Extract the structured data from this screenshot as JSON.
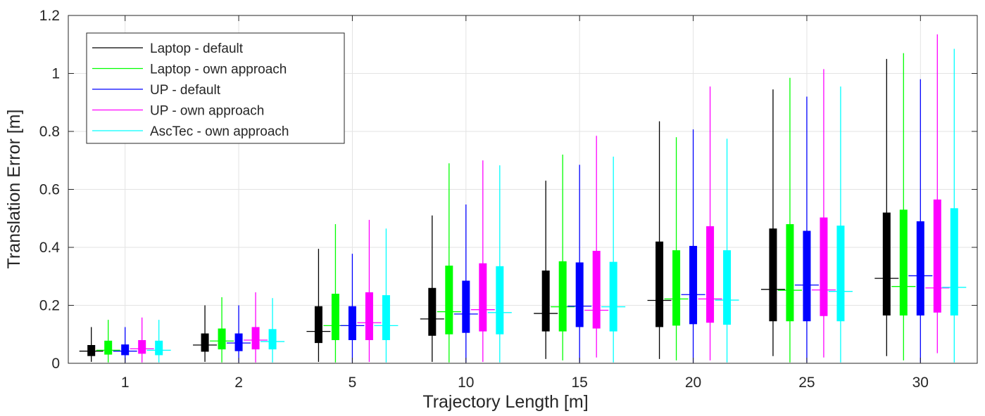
{
  "chart_data": {
    "type": "box",
    "xlabel": "Trajectory Length [m]",
    "ylabel": "Translation Error [m]",
    "ylim": [
      0,
      1.2
    ],
    "yticks": [
      0,
      0.2,
      0.4,
      0.6,
      0.8,
      1,
      1.2
    ],
    "ytick_labels": [
      "0",
      "0.2",
      "0.4",
      "0.6",
      "0.8",
      "1",
      "1.2"
    ],
    "categories": [
      "1",
      "2",
      "5",
      "10",
      "15",
      "20",
      "25",
      "30"
    ],
    "grid": true,
    "legend_position": "top-left",
    "series": [
      {
        "name": "Laptop - default",
        "color": "#000000",
        "min": [
          0.005,
          0.005,
          0.005,
          0.005,
          0.015,
          0.015,
          0.025,
          0.025
        ],
        "q1": [
          0.025,
          0.04,
          0.07,
          0.095,
          0.11,
          0.125,
          0.145,
          0.165
        ],
        "median": [
          0.042,
          0.063,
          0.11,
          0.153,
          0.172,
          0.217,
          0.255,
          0.293
        ],
        "q3": [
          0.063,
          0.103,
          0.197,
          0.26,
          0.32,
          0.42,
          0.465,
          0.52
        ],
        "max": [
          0.125,
          0.2,
          0.395,
          0.51,
          0.63,
          0.835,
          0.945,
          1.05
        ]
      },
      {
        "name": "Laptop - own approach",
        "color": "#00ff00",
        "min": [
          0.003,
          0.003,
          0.003,
          0.003,
          0.01,
          0.01,
          0.003,
          0.01
        ],
        "q1": [
          0.03,
          0.048,
          0.08,
          0.1,
          0.11,
          0.13,
          0.145,
          0.165
        ],
        "median": [
          0.045,
          0.077,
          0.13,
          0.178,
          0.195,
          0.222,
          0.252,
          0.265
        ],
        "q3": [
          0.078,
          0.12,
          0.24,
          0.337,
          0.352,
          0.39,
          0.48,
          0.53
        ],
        "max": [
          0.15,
          0.228,
          0.48,
          0.69,
          0.72,
          0.78,
          0.985,
          1.07
        ]
      },
      {
        "name": "UP - default",
        "color": "#0000ff",
        "min": [
          0.003,
          0.003,
          0.003,
          0.003,
          0.003,
          0.003,
          0.003,
          0.003
        ],
        "q1": [
          0.028,
          0.042,
          0.08,
          0.105,
          0.125,
          0.135,
          0.145,
          0.165
        ],
        "median": [
          0.042,
          0.07,
          0.13,
          0.17,
          0.197,
          0.237,
          0.27,
          0.302
        ],
        "q3": [
          0.065,
          0.103,
          0.197,
          0.285,
          0.348,
          0.405,
          0.457,
          0.49
        ],
        "max": [
          0.125,
          0.2,
          0.378,
          0.548,
          0.685,
          0.807,
          0.92,
          0.98
        ]
      },
      {
        "name": "UP - own approach",
        "color": "#ff00ff",
        "min": [
          0.003,
          0.003,
          0.005,
          0.005,
          0.02,
          0.01,
          0.02,
          0.035
        ],
        "q1": [
          0.033,
          0.048,
          0.08,
          0.11,
          0.12,
          0.14,
          0.163,
          0.175
        ],
        "median": [
          0.05,
          0.08,
          0.14,
          0.185,
          0.183,
          0.222,
          0.253,
          0.26
        ],
        "q3": [
          0.08,
          0.125,
          0.245,
          0.345,
          0.388,
          0.473,
          0.503,
          0.565
        ],
        "max": [
          0.158,
          0.245,
          0.495,
          0.7,
          0.785,
          0.955,
          1.015,
          1.135
        ]
      },
      {
        "name": "AscTec - own approach",
        "color": "#00ffff",
        "min": [
          0.003,
          0.003,
          0.003,
          0.003,
          0.003,
          0.003,
          0.003,
          0.003
        ],
        "q1": [
          0.028,
          0.048,
          0.08,
          0.1,
          0.11,
          0.133,
          0.145,
          0.165
        ],
        "median": [
          0.045,
          0.075,
          0.13,
          0.175,
          0.195,
          0.218,
          0.248,
          0.262
        ],
        "q3": [
          0.078,
          0.118,
          0.235,
          0.335,
          0.35,
          0.39,
          0.475,
          0.535
        ],
        "max": [
          0.15,
          0.225,
          0.465,
          0.683,
          0.713,
          0.775,
          0.955,
          1.085
        ]
      }
    ]
  }
}
